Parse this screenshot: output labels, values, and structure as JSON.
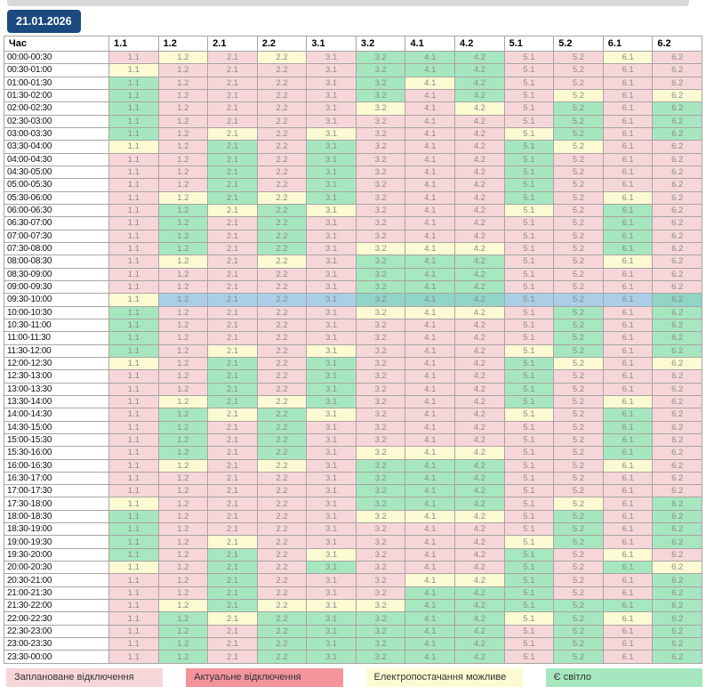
{
  "date_badge": {
    "label": "21.01.2026",
    "background": "#1a4a80",
    "text_color": "#ffffff"
  },
  "colors": {
    "P": "#f7d6d9",
    "A": "#f3949d",
    "Y": "#fbfad2",
    "G": "#a6e7bf",
    "highlight_P": "#a9cee6",
    "highlight_G": "#90d5c5",
    "top_bar": "#d8d8d8"
  },
  "legend": [
    {
      "label": "Заплановане відключення",
      "state": "P"
    },
    {
      "label": "Актуальне відключення",
      "state": "A"
    },
    {
      "label": "Електропостачання можливе",
      "state": "Y"
    },
    {
      "label": "Є світло",
      "state": "G"
    }
  ],
  "table": {
    "columns": [
      "Час",
      "1.1",
      "1.2",
      "2.1",
      "2.2",
      "3.1",
      "3.2",
      "4.1",
      "4.2",
      "5.1",
      "5.2",
      "6.1",
      "6.2"
    ],
    "highlighted_time": "09:30-10:00",
    "rows": [
      {
        "time": "00:00-00:30",
        "states": [
          "P",
          "Y",
          "P",
          "Y",
          "P",
          "G",
          "G",
          "G",
          "P",
          "P",
          "Y",
          "P"
        ]
      },
      {
        "time": "00:30-01:00",
        "states": [
          "Y",
          "P",
          "P",
          "P",
          "P",
          "G",
          "G",
          "G",
          "P",
          "P",
          "P",
          "P"
        ]
      },
      {
        "time": "01:00-01:30",
        "states": [
          "G",
          "P",
          "P",
          "P",
          "P",
          "G",
          "Y",
          "G",
          "P",
          "P",
          "P",
          "P"
        ]
      },
      {
        "time": "01:30-02:00",
        "states": [
          "G",
          "P",
          "P",
          "P",
          "P",
          "G",
          "P",
          "G",
          "P",
          "Y",
          "P",
          "Y"
        ]
      },
      {
        "time": "02:00-02:30",
        "states": [
          "G",
          "P",
          "P",
          "P",
          "P",
          "Y",
          "P",
          "Y",
          "P",
          "G",
          "P",
          "G"
        ]
      },
      {
        "time": "02:30-03:00",
        "states": [
          "G",
          "P",
          "P",
          "P",
          "P",
          "P",
          "P",
          "P",
          "P",
          "G",
          "P",
          "G"
        ]
      },
      {
        "time": "03:00-03:30",
        "states": [
          "G",
          "P",
          "Y",
          "P",
          "Y",
          "P",
          "P",
          "P",
          "Y",
          "G",
          "P",
          "G"
        ]
      },
      {
        "time": "03:30-04:00",
        "states": [
          "Y",
          "P",
          "G",
          "P",
          "G",
          "P",
          "P",
          "P",
          "G",
          "Y",
          "P",
          "P"
        ]
      },
      {
        "time": "04:00-04:30",
        "states": [
          "P",
          "P",
          "G",
          "P",
          "G",
          "P",
          "P",
          "P",
          "G",
          "P",
          "P",
          "P"
        ]
      },
      {
        "time": "04:30-05:00",
        "states": [
          "P",
          "P",
          "G",
          "P",
          "G",
          "P",
          "P",
          "P",
          "G",
          "P",
          "P",
          "P"
        ]
      },
      {
        "time": "05:00-05:30",
        "states": [
          "P",
          "P",
          "G",
          "P",
          "G",
          "P",
          "P",
          "P",
          "G",
          "P",
          "P",
          "P"
        ]
      },
      {
        "time": "05:30-06:00",
        "states": [
          "P",
          "Y",
          "G",
          "Y",
          "G",
          "P",
          "P",
          "P",
          "G",
          "P",
          "Y",
          "P"
        ]
      },
      {
        "time": "06:00-06:30",
        "states": [
          "P",
          "G",
          "Y",
          "G",
          "Y",
          "P",
          "P",
          "P",
          "Y",
          "P",
          "G",
          "P"
        ]
      },
      {
        "time": "06:30-07:00",
        "states": [
          "P",
          "G",
          "P",
          "G",
          "P",
          "P",
          "P",
          "P",
          "P",
          "P",
          "G",
          "P"
        ]
      },
      {
        "time": "07:00-07:30",
        "states": [
          "P",
          "G",
          "P",
          "G",
          "P",
          "P",
          "P",
          "P",
          "P",
          "P",
          "G",
          "P"
        ]
      },
      {
        "time": "07:30-08:00",
        "states": [
          "P",
          "G",
          "P",
          "G",
          "P",
          "Y",
          "Y",
          "Y",
          "P",
          "P",
          "G",
          "P"
        ]
      },
      {
        "time": "08:00-08:30",
        "states": [
          "P",
          "Y",
          "P",
          "Y",
          "P",
          "G",
          "G",
          "G",
          "P",
          "P",
          "Y",
          "P"
        ]
      },
      {
        "time": "08:30-09:00",
        "states": [
          "P",
          "P",
          "P",
          "P",
          "P",
          "G",
          "G",
          "G",
          "P",
          "P",
          "P",
          "P"
        ]
      },
      {
        "time": "09:00-09:30",
        "states": [
          "P",
          "P",
          "P",
          "P",
          "P",
          "G",
          "G",
          "G",
          "P",
          "P",
          "P",
          "P"
        ]
      },
      {
        "time": "09:30-10:00",
        "states": [
          "Y",
          "P",
          "P",
          "P",
          "P",
          "G",
          "G",
          "G",
          "P",
          "P",
          "P",
          "G"
        ]
      },
      {
        "time": "10:00-10:30",
        "states": [
          "G",
          "P",
          "P",
          "P",
          "P",
          "Y",
          "Y",
          "Y",
          "P",
          "G",
          "P",
          "G"
        ]
      },
      {
        "time": "10:30-11:00",
        "states": [
          "G",
          "P",
          "P",
          "P",
          "P",
          "P",
          "P",
          "P",
          "P",
          "G",
          "P",
          "G"
        ]
      },
      {
        "time": "11:00-11:30",
        "states": [
          "G",
          "P",
          "P",
          "P",
          "P",
          "P",
          "P",
          "P",
          "P",
          "G",
          "P",
          "G"
        ]
      },
      {
        "time": "11:30-12:00",
        "states": [
          "G",
          "P",
          "Y",
          "P",
          "Y",
          "P",
          "P",
          "P",
          "Y",
          "G",
          "P",
          "G"
        ]
      },
      {
        "time": "12:00-12:30",
        "states": [
          "Y",
          "P",
          "G",
          "P",
          "G",
          "P",
          "P",
          "P",
          "G",
          "Y",
          "P",
          "Y"
        ]
      },
      {
        "time": "12:30-13:00",
        "states": [
          "P",
          "P",
          "G",
          "P",
          "G",
          "P",
          "P",
          "P",
          "G",
          "P",
          "P",
          "P"
        ]
      },
      {
        "time": "13:00-13:30",
        "states": [
          "P",
          "P",
          "G",
          "P",
          "G",
          "P",
          "P",
          "P",
          "G",
          "P",
          "P",
          "P"
        ]
      },
      {
        "time": "13:30-14:00",
        "states": [
          "P",
          "Y",
          "G",
          "Y",
          "G",
          "P",
          "P",
          "P",
          "G",
          "P",
          "Y",
          "P"
        ]
      },
      {
        "time": "14:00-14:30",
        "states": [
          "P",
          "G",
          "Y",
          "G",
          "Y",
          "P",
          "P",
          "P",
          "Y",
          "P",
          "G",
          "P"
        ]
      },
      {
        "time": "14:30-15:00",
        "states": [
          "P",
          "G",
          "P",
          "G",
          "P",
          "P",
          "P",
          "P",
          "P",
          "P",
          "G",
          "P"
        ]
      },
      {
        "time": "15:00-15:30",
        "states": [
          "P",
          "G",
          "P",
          "G",
          "P",
          "P",
          "P",
          "P",
          "P",
          "P",
          "G",
          "P"
        ]
      },
      {
        "time": "15:30-16:00",
        "states": [
          "P",
          "G",
          "P",
          "G",
          "P",
          "Y",
          "Y",
          "Y",
          "P",
          "P",
          "G",
          "P"
        ]
      },
      {
        "time": "16:00-16:30",
        "states": [
          "P",
          "Y",
          "P",
          "Y",
          "P",
          "G",
          "G",
          "G",
          "P",
          "P",
          "Y",
          "P"
        ]
      },
      {
        "time": "16:30-17:00",
        "states": [
          "P",
          "P",
          "P",
          "P",
          "P",
          "G",
          "G",
          "G",
          "P",
          "P",
          "P",
          "P"
        ]
      },
      {
        "time": "17:00-17:30",
        "states": [
          "P",
          "P",
          "P",
          "P",
          "P",
          "G",
          "G",
          "G",
          "P",
          "P",
          "P",
          "P"
        ]
      },
      {
        "time": "17:30-18:00",
        "states": [
          "Y",
          "P",
          "P",
          "P",
          "P",
          "G",
          "G",
          "G",
          "P",
          "Y",
          "P",
          "G"
        ]
      },
      {
        "time": "18:00-18:30",
        "states": [
          "G",
          "P",
          "P",
          "P",
          "P",
          "Y",
          "Y",
          "Y",
          "P",
          "G",
          "P",
          "G"
        ]
      },
      {
        "time": "18:30-19:00",
        "states": [
          "G",
          "P",
          "P",
          "P",
          "P",
          "P",
          "P",
          "P",
          "P",
          "G",
          "P",
          "G"
        ]
      },
      {
        "time": "19:00-19:30",
        "states": [
          "G",
          "P",
          "Y",
          "P",
          "P",
          "P",
          "P",
          "P",
          "Y",
          "G",
          "P",
          "G"
        ]
      },
      {
        "time": "19:30-20:00",
        "states": [
          "G",
          "P",
          "G",
          "P",
          "Y",
          "P",
          "P",
          "P",
          "G",
          "P",
          "Y",
          "P"
        ]
      },
      {
        "time": "20:00-20:30",
        "states": [
          "Y",
          "P",
          "G",
          "P",
          "G",
          "P",
          "P",
          "P",
          "G",
          "P",
          "G",
          "Y"
        ]
      },
      {
        "time": "20:30-21:00",
        "states": [
          "P",
          "P",
          "G",
          "P",
          "P",
          "P",
          "Y",
          "Y",
          "G",
          "P",
          "P",
          "G"
        ]
      },
      {
        "time": "21:00-21:30",
        "states": [
          "P",
          "P",
          "G",
          "P",
          "P",
          "P",
          "G",
          "G",
          "G",
          "P",
          "P",
          "G"
        ]
      },
      {
        "time": "21:30-22:00",
        "states": [
          "P",
          "Y",
          "G",
          "Y",
          "Y",
          "Y",
          "G",
          "G",
          "G",
          "G",
          "G",
          "G"
        ]
      },
      {
        "time": "22:00-22:30",
        "states": [
          "P",
          "G",
          "Y",
          "G",
          "G",
          "G",
          "G",
          "G",
          "Y",
          "G",
          "Y",
          "G"
        ]
      },
      {
        "time": "22:30-23:00",
        "states": [
          "P",
          "G",
          "P",
          "G",
          "G",
          "G",
          "G",
          "G",
          "P",
          "G",
          "P",
          "G"
        ]
      },
      {
        "time": "23:00-23:30",
        "states": [
          "P",
          "G",
          "P",
          "G",
          "G",
          "G",
          "G",
          "G",
          "P",
          "G",
          "P",
          "G"
        ]
      },
      {
        "time": "23:30-00:00",
        "states": [
          "P",
          "G",
          "P",
          "G",
          "G",
          "G",
          "G",
          "G",
          "P",
          "G",
          "P",
          "G"
        ]
      }
    ]
  }
}
